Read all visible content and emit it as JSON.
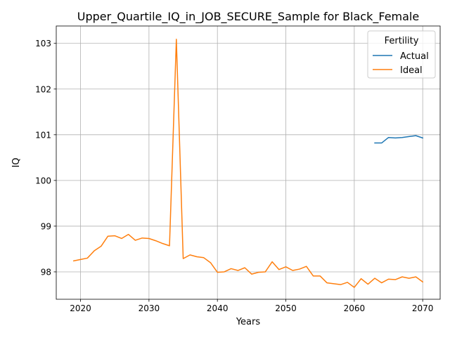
{
  "chart_data": {
    "type": "line",
    "title": "Upper_Quartile_IQ_in_JOB_SECURE_Sample for Black_Female",
    "xlabel": "Years",
    "ylabel": "IQ",
    "xlim": [
      2016.45,
      2072.55
    ],
    "ylim": [
      97.4,
      103.38
    ],
    "xticks": [
      2020,
      2030,
      2040,
      2050,
      2060,
      2070
    ],
    "yticks": [
      98,
      99,
      100,
      101,
      102,
      103
    ],
    "grid": true,
    "legend": {
      "title": "Fertility",
      "placement": "top-right"
    },
    "series": [
      {
        "name": "Actual",
        "color": "#1f77b4",
        "x": [
          2063,
          2064,
          2065,
          2066,
          2067,
          2068,
          2069,
          2070
        ],
        "y": [
          100.82,
          100.82,
          100.94,
          100.93,
          100.94,
          100.96,
          100.98,
          100.93
        ]
      },
      {
        "name": "Ideal",
        "color": "#ff7f0e",
        "x": [
          2019,
          2020,
          2021,
          2022,
          2023,
          2024,
          2025,
          2026,
          2027,
          2028,
          2029,
          2030,
          2031,
          2032,
          2033,
          2034,
          2035,
          2036,
          2037,
          2038,
          2039,
          2040,
          2041,
          2042,
          2043,
          2044,
          2045,
          2046,
          2047,
          2048,
          2049,
          2050,
          2051,
          2052,
          2053,
          2054,
          2055,
          2056,
          2057,
          2058,
          2059,
          2060,
          2061,
          2062,
          2063,
          2064,
          2065,
          2066,
          2067,
          2068,
          2069,
          2070
        ],
        "y": [
          98.24,
          98.27,
          98.3,
          98.46,
          98.56,
          98.78,
          98.79,
          98.73,
          98.82,
          98.69,
          98.74,
          98.73,
          98.68,
          98.62,
          98.57,
          103.09,
          98.29,
          98.37,
          98.33,
          98.31,
          98.2,
          97.99,
          98.0,
          98.07,
          98.03,
          98.09,
          97.95,
          97.99,
          98.0,
          98.22,
          98.05,
          98.11,
          98.03,
          98.06,
          98.12,
          97.91,
          97.91,
          97.76,
          97.74,
          97.72,
          97.77,
          97.66,
          97.85,
          97.73,
          97.86,
          97.76,
          97.84,
          97.83,
          97.89,
          97.86,
          97.89,
          97.78
        ]
      }
    ]
  }
}
